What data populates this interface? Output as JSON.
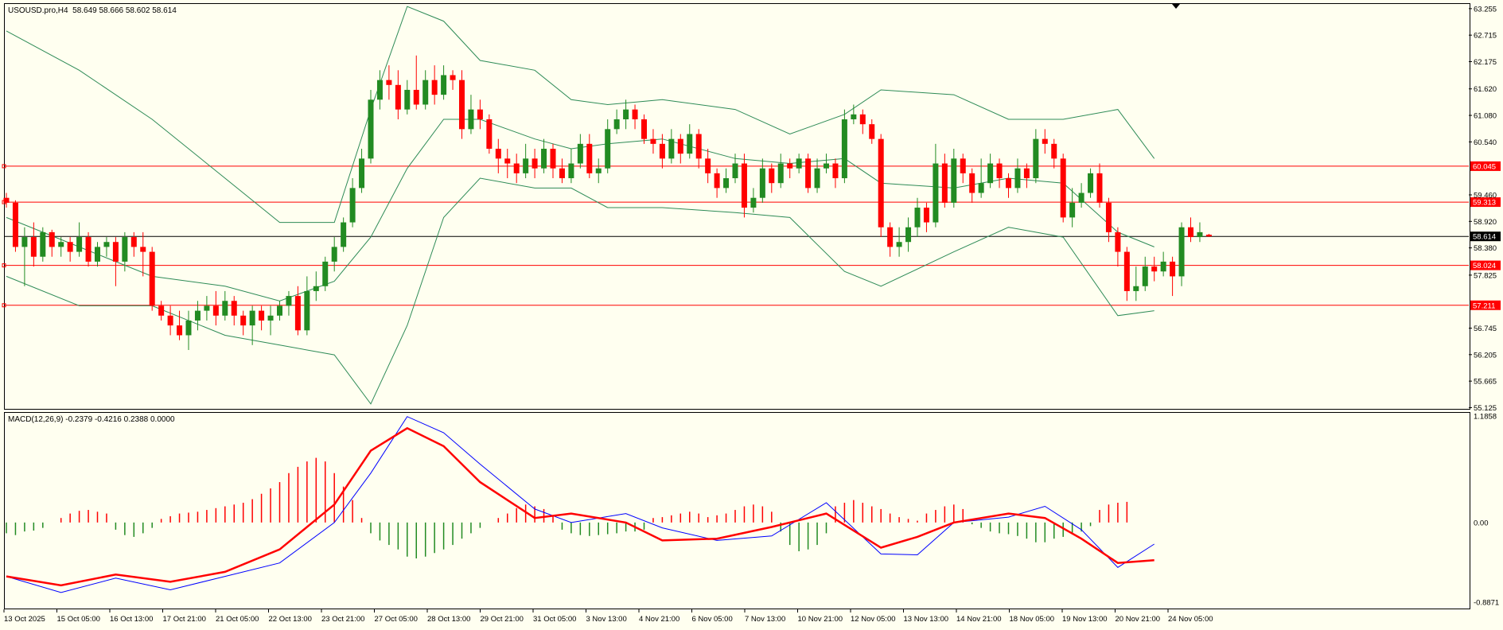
{
  "symbol_info": "USOUSD.pro,H4  58.649 58.666 58.602 58.614",
  "macd_info": "MACD(12,26,9) -0.2379 -0.4216 0.2388 0.0000",
  "colors": {
    "background": "#fffff0",
    "bull": "#228b22",
    "bear": "#ff0000",
    "band": "#2e8b57",
    "macd": "#0000ff",
    "signal": "#ff0000",
    "hline": "#ff0000",
    "price_line": "#000000"
  },
  "price_axis": [
    "63.255",
    "62.715",
    "62.175",
    "61.620",
    "61.080",
    "60.540",
    "59.460",
    "58.920",
    "58.380",
    "57.825",
    "56.745",
    "56.205",
    "55.665",
    "55.125"
  ],
  "macd_axis": [
    "1.1858",
    "0.00",
    "-0.8871"
  ],
  "time_axis": [
    "13 Oct 2025",
    "15 Oct 05:00",
    "16 Oct 13:00",
    "17 Oct 21:00",
    "21 Oct 05:00",
    "22 Oct 13:00",
    "23 Oct 21:00",
    "27 Oct 05:00",
    "28 Oct 13:00",
    "29 Oct 21:00",
    "31 Oct 05:00",
    "3 Nov 13:00",
    "4 Nov 21:00",
    "6 Nov 05:00",
    "7 Nov 13:00",
    "10 Nov 21:00",
    "12 Nov 05:00",
    "13 Nov 13:00",
    "14 Nov 21:00",
    "18 Nov 05:00",
    "19 Nov 13:00",
    "20 Nov 21:00",
    "24 Nov 05:00"
  ],
  "horizontal_levels": [
    {
      "label": "60.045",
      "value": 60.045,
      "type": "red"
    },
    {
      "label": "59.313",
      "value": 59.313,
      "type": "red"
    },
    {
      "label": "58.614",
      "value": 58.614,
      "type": "current"
    },
    {
      "label": "58.024",
      "value": 58.024,
      "type": "red"
    },
    {
      "label": "57.211",
      "value": 57.211,
      "type": "red"
    }
  ],
  "chart_data": {
    "type": "candlestick",
    "price_range": [
      55.1,
      63.35
    ],
    "macd_range": [
      -0.8871,
      1.1858
    ],
    "candles": [
      [
        59.4,
        59.3,
        59.5,
        59.2
      ],
      [
        59.3,
        58.4,
        59.35,
        58.3
      ],
      [
        58.4,
        58.6,
        58.8,
        57.6
      ],
      [
        58.6,
        58.2,
        58.9,
        58.0
      ],
      [
        58.2,
        58.7,
        58.8,
        58.1
      ],
      [
        58.7,
        58.4,
        58.75,
        58.2
      ],
      [
        58.4,
        58.5,
        58.6,
        58.2
      ],
      [
        58.5,
        58.3,
        58.6,
        58.1
      ],
      [
        58.3,
        58.6,
        58.9,
        58.2
      ],
      [
        58.6,
        58.1,
        58.7,
        58.0
      ],
      [
        58.1,
        58.4,
        58.5,
        58.0
      ],
      [
        58.4,
        58.5,
        58.6,
        58.2
      ],
      [
        58.5,
        58.1,
        58.6,
        57.6
      ],
      [
        58.1,
        58.6,
        58.7,
        57.9
      ],
      [
        58.6,
        58.4,
        58.7,
        58.2
      ],
      [
        58.4,
        58.3,
        58.7,
        57.8
      ],
      [
        58.3,
        57.2,
        58.4,
        57.1
      ],
      [
        57.2,
        57.0,
        57.3,
        56.9
      ],
      [
        57.0,
        56.8,
        57.2,
        56.6
      ],
      [
        56.8,
        56.6,
        57.1,
        56.5
      ],
      [
        56.6,
        56.9,
        57.1,
        56.3
      ],
      [
        56.9,
        57.1,
        57.3,
        56.7
      ],
      [
        57.1,
        57.2,
        57.4,
        56.9
      ],
      [
        57.2,
        57.0,
        57.5,
        56.8
      ],
      [
        57.0,
        57.3,
        57.5,
        56.9
      ],
      [
        57.3,
        57.0,
        57.4,
        56.8
      ],
      [
        57.0,
        56.8,
        57.1,
        56.6
      ],
      [
        56.8,
        57.1,
        57.2,
        56.4
      ],
      [
        57.1,
        56.9,
        57.2,
        56.7
      ],
      [
        56.9,
        57.0,
        57.2,
        56.6
      ],
      [
        57.0,
        57.2,
        57.3,
        56.9
      ],
      [
        57.2,
        57.4,
        57.5,
        57.0
      ],
      [
        57.4,
        56.7,
        57.6,
        56.6
      ],
      [
        56.7,
        57.5,
        57.8,
        56.6
      ],
      [
        57.5,
        57.6,
        57.9,
        57.3
      ],
      [
        57.6,
        58.1,
        58.2,
        57.5
      ],
      [
        58.1,
        58.4,
        58.6,
        57.9
      ],
      [
        58.4,
        58.9,
        59.0,
        58.3
      ],
      [
        58.9,
        59.6,
        59.8,
        58.8
      ],
      [
        59.6,
        60.2,
        60.4,
        59.5
      ],
      [
        60.2,
        61.4,
        61.6,
        60.1
      ],
      [
        61.4,
        61.8,
        62.0,
        61.2
      ],
      [
        61.8,
        61.7,
        62.1,
        61.4
      ],
      [
        61.7,
        61.2,
        62.0,
        61.0
      ],
      [
        61.2,
        61.6,
        61.8,
        61.1
      ],
      [
        61.6,
        61.3,
        62.3,
        61.2
      ],
      [
        61.3,
        61.8,
        62.0,
        61.2
      ],
      [
        61.8,
        61.5,
        62.1,
        61.3
      ],
      [
        61.5,
        61.9,
        62.1,
        61.4
      ],
      [
        61.9,
        61.8,
        62.0,
        61.6
      ],
      [
        61.8,
        60.8,
        62.0,
        60.6
      ],
      [
        60.8,
        61.2,
        61.5,
        60.7
      ],
      [
        61.2,
        61.0,
        61.4,
        60.8
      ],
      [
        61.0,
        60.4,
        61.1,
        60.3
      ],
      [
        60.4,
        60.2,
        60.6,
        59.9
      ],
      [
        60.2,
        60.1,
        60.4,
        59.8
      ],
      [
        60.1,
        59.9,
        60.3,
        59.7
      ],
      [
        59.9,
        60.2,
        60.5,
        59.8
      ],
      [
        60.2,
        60.0,
        60.4,
        59.8
      ],
      [
        60.0,
        60.4,
        60.6,
        59.9
      ],
      [
        60.4,
        60.0,
        60.5,
        59.8
      ],
      [
        60.0,
        59.8,
        60.2,
        59.7
      ],
      [
        59.8,
        60.1,
        60.4,
        59.7
      ],
      [
        60.1,
        60.5,
        60.7,
        60.0
      ],
      [
        60.5,
        59.9,
        60.7,
        59.8
      ],
      [
        59.9,
        60.0,
        60.2,
        59.7
      ],
      [
        60.0,
        60.8,
        61.0,
        59.9
      ],
      [
        60.8,
        61.0,
        61.2,
        60.7
      ],
      [
        61.0,
        61.2,
        61.4,
        60.8
      ],
      [
        61.2,
        61.0,
        61.3,
        60.8
      ],
      [
        61.0,
        60.6,
        61.1,
        60.5
      ],
      [
        60.6,
        60.5,
        60.8,
        60.3
      ],
      [
        60.5,
        60.2,
        60.7,
        60.0
      ],
      [
        60.2,
        60.6,
        60.8,
        60.1
      ],
      [
        60.6,
        60.3,
        60.7,
        60.1
      ],
      [
        60.3,
        60.7,
        60.9,
        60.2
      ],
      [
        60.7,
        60.2,
        60.8,
        60.0
      ],
      [
        60.2,
        59.9,
        60.4,
        59.7
      ],
      [
        59.9,
        59.6,
        60.0,
        59.4
      ],
      [
        59.6,
        59.8,
        60.0,
        59.5
      ],
      [
        59.8,
        60.1,
        60.3,
        59.7
      ],
      [
        60.1,
        59.2,
        60.3,
        59.0
      ],
      [
        59.2,
        59.4,
        59.6,
        59.1
      ],
      [
        59.4,
        60.0,
        60.2,
        59.3
      ],
      [
        60.0,
        59.7,
        60.1,
        59.5
      ],
      [
        59.7,
        60.1,
        60.3,
        59.6
      ],
      [
        60.1,
        60.0,
        60.2,
        59.8
      ],
      [
        60.0,
        60.2,
        60.3,
        59.9
      ],
      [
        60.2,
        59.6,
        60.3,
        59.5
      ],
      [
        59.6,
        60.0,
        60.2,
        59.5
      ],
      [
        60.0,
        60.1,
        60.3,
        59.9
      ],
      [
        60.1,
        59.8,
        60.2,
        59.6
      ],
      [
        59.8,
        61.0,
        61.2,
        59.7
      ],
      [
        61.0,
        61.1,
        61.3,
        60.9
      ],
      [
        61.1,
        60.9,
        61.2,
        60.7
      ],
      [
        60.9,
        60.6,
        61.0,
        60.5
      ],
      [
        60.6,
        58.8,
        60.7,
        58.6
      ],
      [
        58.8,
        58.4,
        58.9,
        58.2
      ],
      [
        58.4,
        58.5,
        58.8,
        58.2
      ],
      [
        58.5,
        58.8,
        59.0,
        58.3
      ],
      [
        58.8,
        59.2,
        59.4,
        58.6
      ],
      [
        59.2,
        58.9,
        59.3,
        58.7
      ],
      [
        58.9,
        60.1,
        60.5,
        58.8
      ],
      [
        60.1,
        59.3,
        60.3,
        59.2
      ],
      [
        59.3,
        60.2,
        60.4,
        59.2
      ],
      [
        60.2,
        59.9,
        60.3,
        59.7
      ],
      [
        59.9,
        59.5,
        60.0,
        59.3
      ],
      [
        59.5,
        59.7,
        60.2,
        59.4
      ],
      [
        59.7,
        60.1,
        60.3,
        59.6
      ],
      [
        60.1,
        59.8,
        60.2,
        59.6
      ],
      [
        59.8,
        59.6,
        59.9,
        59.4
      ],
      [
        59.6,
        60.0,
        60.2,
        59.5
      ],
      [
        60.0,
        59.8,
        60.1,
        59.6
      ],
      [
        59.8,
        60.6,
        60.8,
        59.7
      ],
      [
        60.6,
        60.5,
        60.8,
        60.3
      ],
      [
        60.5,
        60.2,
        60.6,
        60.0
      ],
      [
        60.2,
        59.0,
        60.3,
        58.9
      ],
      [
        59.0,
        59.3,
        59.6,
        58.8
      ],
      [
        59.3,
        59.5,
        59.7,
        59.2
      ],
      [
        59.5,
        59.9,
        60.0,
        59.4
      ],
      [
        59.9,
        59.3,
        60.1,
        59.2
      ],
      [
        59.3,
        58.7,
        59.4,
        58.5
      ],
      [
        58.7,
        58.3,
        58.8,
        58.0
      ],
      [
        58.3,
        57.5,
        58.4,
        57.3
      ],
      [
        57.5,
        57.6,
        58.0,
        57.3
      ],
      [
        57.6,
        58.0,
        58.2,
        57.5
      ],
      [
        58.0,
        57.9,
        58.2,
        57.7
      ],
      [
        57.9,
        58.1,
        58.3,
        57.8
      ],
      [
        58.1,
        57.8,
        58.2,
        57.4
      ],
      [
        57.8,
        58.8,
        58.9,
        57.6
      ],
      [
        58.8,
        58.6,
        59.0,
        58.5
      ],
      [
        58.6,
        58.7,
        58.9,
        58.5
      ],
      [
        58.649,
        58.614,
        58.666,
        58.602
      ]
    ],
    "bb_upper": [
      [
        0,
        62.8
      ],
      [
        8,
        62.0
      ],
      [
        16,
        61.0
      ],
      [
        24,
        59.8
      ],
      [
        30,
        58.9
      ],
      [
        36,
        58.9
      ],
      [
        40,
        61.2
      ],
      [
        44,
        63.3
      ],
      [
        48,
        63.0
      ],
      [
        52,
        62.2
      ],
      [
        58,
        62.0
      ],
      [
        62,
        61.4
      ],
      [
        66,
        61.3
      ],
      [
        72,
        61.4
      ],
      [
        80,
        61.2
      ],
      [
        86,
        60.7
      ],
      [
        92,
        61.1
      ],
      [
        96,
        61.6
      ],
      [
        104,
        61.5
      ],
      [
        110,
        61.0
      ],
      [
        116,
        61.0
      ],
      [
        122,
        61.2
      ],
      [
        126,
        60.2
      ]
    ],
    "bb_middle": [
      [
        0,
        59.0
      ],
      [
        8,
        58.4
      ],
      [
        16,
        57.8
      ],
      [
        24,
        57.6
      ],
      [
        30,
        57.3
      ],
      [
        36,
        57.7
      ],
      [
        40,
        58.6
      ],
      [
        44,
        60.0
      ],
      [
        48,
        61.0
      ],
      [
        52,
        61.0
      ],
      [
        58,
        60.6
      ],
      [
        62,
        60.4
      ],
      [
        66,
        60.5
      ],
      [
        72,
        60.6
      ],
      [
        80,
        60.2
      ],
      [
        86,
        60.1
      ],
      [
        92,
        60.2
      ],
      [
        96,
        59.7
      ],
      [
        104,
        59.6
      ],
      [
        110,
        59.8
      ],
      [
        116,
        59.7
      ],
      [
        122,
        58.7
      ],
      [
        126,
        58.4
      ]
    ],
    "bb_lower": [
      [
        0,
        57.8
      ],
      [
        8,
        57.2
      ],
      [
        16,
        57.2
      ],
      [
        24,
        56.6
      ],
      [
        30,
        56.4
      ],
      [
        36,
        56.2
      ],
      [
        40,
        55.2
      ],
      [
        44,
        56.8
      ],
      [
        48,
        59.0
      ],
      [
        52,
        59.8
      ],
      [
        58,
        59.6
      ],
      [
        62,
        59.6
      ],
      [
        66,
        59.2
      ],
      [
        72,
        59.2
      ],
      [
        80,
        59.1
      ],
      [
        86,
        59.0
      ],
      [
        92,
        57.9
      ],
      [
        96,
        57.6
      ],
      [
        104,
        58.3
      ],
      [
        110,
        58.8
      ],
      [
        116,
        58.6
      ],
      [
        122,
        57.0
      ],
      [
        126,
        57.1
      ]
    ],
    "macd_line": [
      [
        0,
        -0.6
      ],
      [
        6,
        -0.78
      ],
      [
        12,
        -0.62
      ],
      [
        18,
        -0.75
      ],
      [
        24,
        -0.6
      ],
      [
        30,
        -0.45
      ],
      [
        36,
        0.0
      ],
      [
        40,
        0.55
      ],
      [
        44,
        1.18
      ],
      [
        48,
        1.0
      ],
      [
        52,
        0.65
      ],
      [
        58,
        0.15
      ],
      [
        62,
        0.0
      ],
      [
        68,
        0.1
      ],
      [
        72,
        -0.06
      ],
      [
        78,
        -0.2
      ],
      [
        84,
        -0.15
      ],
      [
        90,
        0.22
      ],
      [
        96,
        -0.35
      ],
      [
        100,
        -0.36
      ],
      [
        104,
        0.0
      ],
      [
        110,
        0.06
      ],
      [
        114,
        0.18
      ],
      [
        118,
        -0.08
      ],
      [
        122,
        -0.5
      ],
      [
        126,
        -0.24
      ]
    ],
    "signal_line": [
      [
        0,
        -0.6
      ],
      [
        6,
        -0.7
      ],
      [
        12,
        -0.58
      ],
      [
        18,
        -0.66
      ],
      [
        24,
        -0.55
      ],
      [
        30,
        -0.3
      ],
      [
        36,
        0.2
      ],
      [
        40,
        0.8
      ],
      [
        44,
        1.05
      ],
      [
        48,
        0.85
      ],
      [
        52,
        0.45
      ],
      [
        58,
        0.05
      ],
      [
        62,
        0.1
      ],
      [
        68,
        0.0
      ],
      [
        72,
        -0.2
      ],
      [
        78,
        -0.18
      ],
      [
        84,
        -0.05
      ],
      [
        90,
        0.1
      ],
      [
        96,
        -0.28
      ],
      [
        100,
        -0.16
      ],
      [
        104,
        0.0
      ],
      [
        110,
        0.1
      ],
      [
        114,
        0.05
      ],
      [
        118,
        -0.18
      ],
      [
        122,
        -0.45
      ],
      [
        126,
        -0.42
      ]
    ],
    "histogram": [
      -0.12,
      -0.14,
      -0.1,
      -0.09,
      -0.06,
      0.0,
      0.05,
      0.1,
      0.13,
      0.14,
      0.12,
      0.1,
      -0.08,
      -0.14,
      -0.16,
      -0.12,
      -0.06,
      0.04,
      0.07,
      0.1,
      0.11,
      0.12,
      0.14,
      0.16,
      0.18,
      0.2,
      0.22,
      0.26,
      0.32,
      0.38,
      0.45,
      0.55,
      0.62,
      0.68,
      0.72,
      0.68,
      0.55,
      0.4,
      0.25,
      0.05,
      -0.12,
      -0.2,
      -0.25,
      -0.3,
      -0.38,
      -0.4,
      -0.38,
      -0.34,
      -0.3,
      -0.25,
      -0.18,
      -0.12,
      -0.06,
      0.0,
      0.05,
      0.1,
      0.16,
      0.2,
      0.18,
      0.15,
      0.08,
      -0.08,
      -0.12,
      -0.14,
      -0.15,
      -0.14,
      -0.13,
      -0.12,
      -0.1,
      -0.1,
      -0.08,
      0.05,
      0.06,
      0.08,
      0.1,
      0.12,
      0.1,
      0.06,
      0.08,
      0.1,
      0.14,
      0.18,
      0.2,
      0.18,
      0.12,
      -0.1,
      -0.25,
      -0.32,
      -0.3,
      -0.25,
      -0.12,
      0.18,
      0.22,
      0.25,
      0.22,
      0.18,
      0.15,
      0.1,
      0.06,
      0.04,
      0.02,
      0.1,
      0.14,
      0.18,
      0.2,
      0.15,
      -0.02,
      -0.06,
      -0.1,
      -0.12,
      -0.13,
      -0.15,
      -0.18,
      -0.22,
      -0.22,
      -0.18,
      -0.16,
      -0.12,
      -0.1,
      -0.04,
      0.14,
      0.2,
      0.22,
      0.23
    ]
  }
}
